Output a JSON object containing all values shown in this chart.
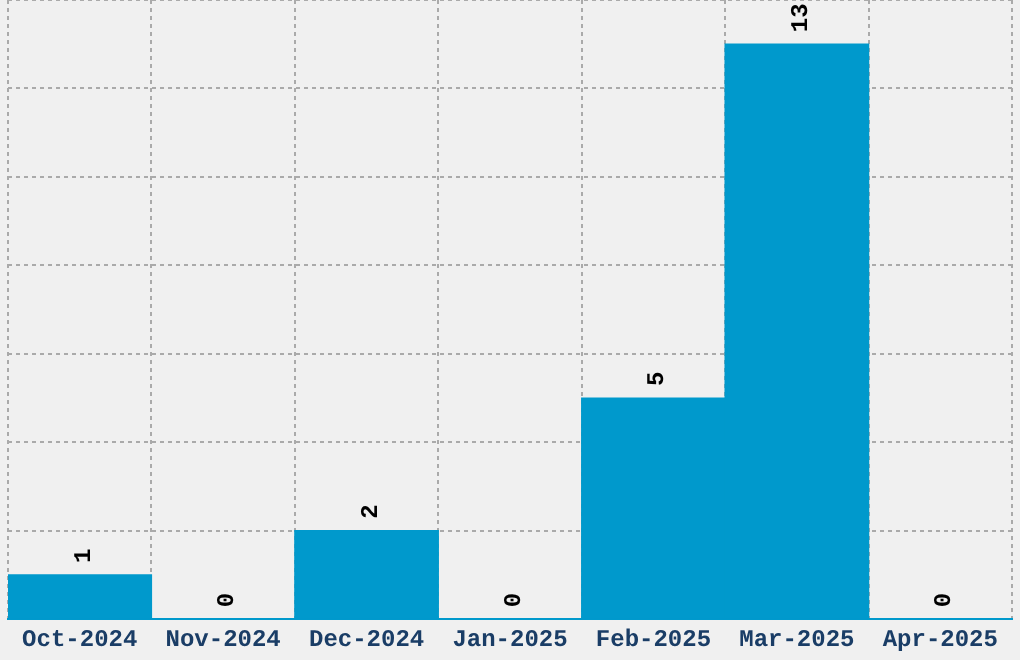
{
  "chart_data": {
    "type": "bar",
    "categories": [
      "Oct-2024",
      "Nov-2024",
      "Dec-2024",
      "Jan-2025",
      "Feb-2025",
      "Mar-2025",
      "Apr-2025"
    ],
    "values": [
      1,
      0,
      2,
      0,
      5,
      13,
      0
    ],
    "color": "#0099cc",
    "data_labels": true,
    "grid": true,
    "legend": false
  }
}
